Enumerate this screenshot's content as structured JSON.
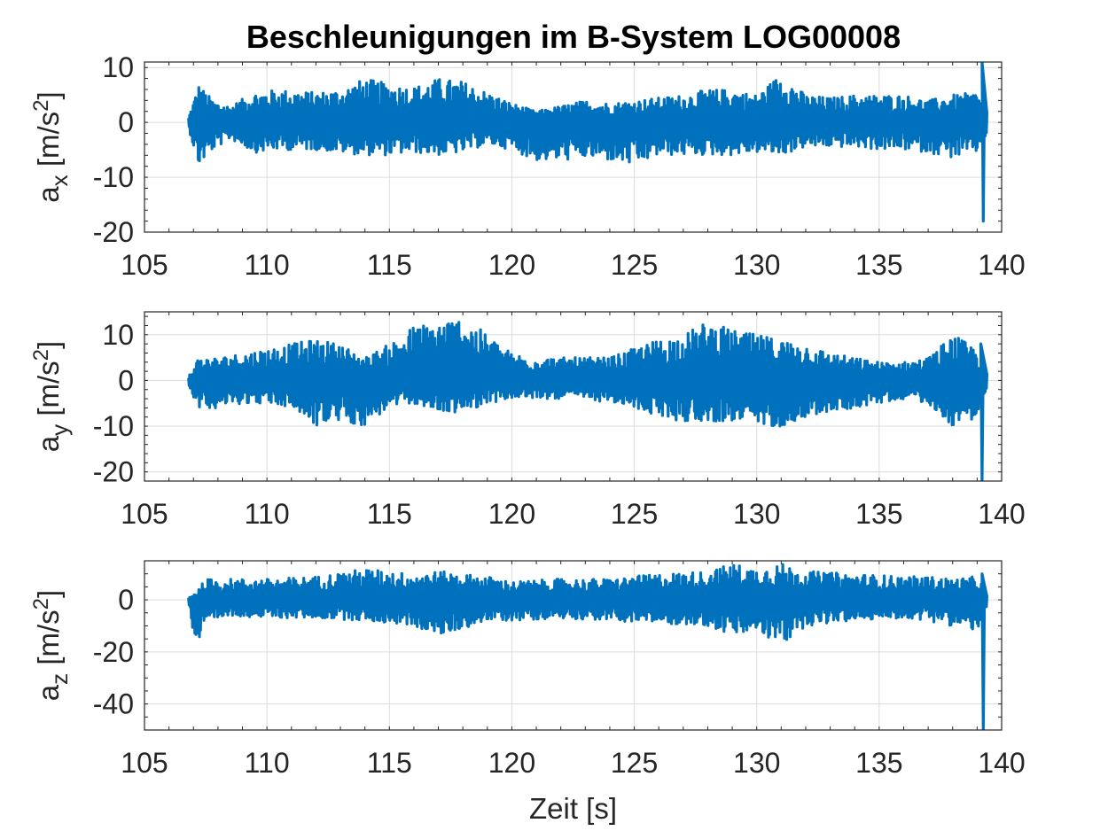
{
  "colors": {
    "series": "#0072BD"
  },
  "figure_title": "Beschleunigungen im B-System LOG00008",
  "chart_data": [
    {
      "type": "line",
      "title": "Beschleunigungen im B-System LOG00008",
      "xlabel": "",
      "ylabel": "a_x [m/s^2]",
      "ylabel_parts": {
        "base": "a",
        "sub": "x",
        "unit": "[m/s",
        "sup": "2",
        "close": "]"
      },
      "xlim": [
        105,
        140
      ],
      "ylim": [
        -20,
        11
      ],
      "grid": true,
      "xticks": [
        "105",
        "110",
        "115",
        "120",
        "125",
        "130",
        "135",
        "140"
      ],
      "yticks": [
        {
          "value": -20,
          "label": "-20"
        },
        {
          "value": -10,
          "label": "-10"
        },
        {
          "value": 0,
          "label": "0"
        },
        {
          "value": 10,
          "label": "10"
        }
      ],
      "series": [
        {
          "envelope": {
            "x": [
              106.8,
              107.2,
              107.8,
              108.5,
              109.5,
              110.5,
              112,
              113,
              114,
              115,
              116,
              117,
              118,
              119,
              120,
              121,
              122,
              123,
              124,
              125,
              126,
              127,
              128,
              129,
              130,
              131,
              132,
              133,
              134,
              135,
              136,
              137,
              138,
              139,
              139.4
            ],
            "upper": [
              1,
              7,
              4,
              3,
              5.5,
              6,
              5.5,
              6,
              8,
              7,
              6.5,
              8,
              7.5,
              5.5,
              3.5,
              2,
              3,
              4,
              3.5,
              4,
              4.5,
              5,
              6,
              6,
              5,
              9,
              5,
              4.5,
              5,
              5,
              5,
              4,
              5,
              5.5,
              2
            ],
            "lower": [
              -1,
              -8,
              -5,
              -3,
              -5.5,
              -5,
              -5,
              -5.5,
              -6,
              -6,
              -5.5,
              -6,
              -5.5,
              -4,
              -5,
              -7,
              -7,
              -6.5,
              -7,
              -8,
              -6,
              -6,
              -6,
              -6,
              -5.5,
              -6,
              -4.5,
              -4.5,
              -4.5,
              -5,
              -5,
              -5.5,
              -6.5,
              -5.5,
              -2
            ]
          },
          "spike": {
            "x": 139.25,
            "max": 11,
            "min": -18
          }
        }
      ]
    },
    {
      "type": "line",
      "xlabel": "",
      "ylabel": "a_y [m/s^2]",
      "ylabel_parts": {
        "base": "a",
        "sub": "y",
        "unit": "[m/s",
        "sup": "2",
        "close": "]"
      },
      "xlim": [
        105,
        140
      ],
      "ylim": [
        -22,
        15
      ],
      "grid": true,
      "xticks": [
        "105",
        "110",
        "115",
        "120",
        "125",
        "130",
        "135",
        "140"
      ],
      "yticks": [
        {
          "value": -20,
          "label": "-20"
        },
        {
          "value": -10,
          "label": "-10"
        },
        {
          "value": 0,
          "label": "0"
        },
        {
          "value": 10,
          "label": "10"
        }
      ],
      "series": [
        {
          "envelope": {
            "x": [
              106.8,
              107.2,
              108,
              109,
              110,
              111,
              112,
              113,
              114,
              115,
              116,
              117,
              118,
              119,
              120,
              121,
              122,
              123,
              124,
              125,
              126,
              127,
              128,
              129,
              130,
              131,
              132,
              133,
              134,
              135,
              136,
              137,
              138,
              139,
              139.4
            ],
            "upper": [
              1,
              5,
              5,
              6,
              7,
              8,
              9,
              8,
              5,
              8,
              12,
              13,
              14,
              10,
              6,
              5,
              5,
              5,
              5,
              7,
              9,
              10,
              13,
              11,
              10,
              9,
              8,
              6,
              5,
              4,
              4,
              5,
              10,
              7,
              2
            ],
            "lower": [
              -1,
              -6,
              -6,
              -5,
              -5,
              -6,
              -10,
              -9,
              -10,
              -6,
              -5,
              -7,
              -7,
              -5,
              -4,
              -4,
              -4,
              -4,
              -5,
              -6,
              -8,
              -9,
              -9,
              -9,
              -10,
              -10,
              -8,
              -7,
              -6,
              -5,
              -4,
              -5,
              -10,
              -8,
              -2
            ]
          },
          "spike": {
            "x": 139.2,
            "max": 8,
            "min": -22
          }
        }
      ]
    },
    {
      "type": "line",
      "xlabel": "Zeit [s]",
      "ylabel": "a_z [m/s^2]",
      "ylabel_parts": {
        "base": "a",
        "sub": "z",
        "unit": "[m/s",
        "sup": "2",
        "close": "]"
      },
      "xlim": [
        105,
        140
      ],
      "ylim": [
        -50,
        15
      ],
      "grid": true,
      "xticks": [
        "105",
        "110",
        "115",
        "120",
        "125",
        "130",
        "135",
        "140"
      ],
      "yticks": [
        {
          "value": -40,
          "label": "-40"
        },
        {
          "value": -20,
          "label": "-20"
        },
        {
          "value": 0,
          "label": "0"
        }
      ],
      "series": [
        {
          "envelope": {
            "x": [
              106.8,
              107.1,
              107.5,
              108.5,
              110,
              112,
              114,
              116,
              117,
              119,
              120,
              122,
              124,
              126,
              128,
              129,
              130,
              131,
              132,
              134,
              136,
              137,
              138,
              139,
              139.4
            ],
            "upper": [
              1,
              3,
              8,
              8,
              8,
              9,
              12,
              10,
              11,
              9,
              7,
              8,
              8,
              10,
              11,
              14,
              12,
              14,
              11,
              10,
              9,
              9,
              8,
              9,
              3
            ],
            "lower": [
              -1,
              -20,
              -10,
              -6,
              -7,
              -7,
              -8,
              -10,
              -14,
              -8,
              -8,
              -7,
              -8,
              -9,
              -10,
              -14,
              -12,
              -18,
              -10,
              -8,
              -7,
              -8,
              -10,
              -12,
              -3
            ]
          },
          "spike": {
            "x": 139.25,
            "max": 10,
            "min": -50
          }
        }
      ]
    }
  ]
}
